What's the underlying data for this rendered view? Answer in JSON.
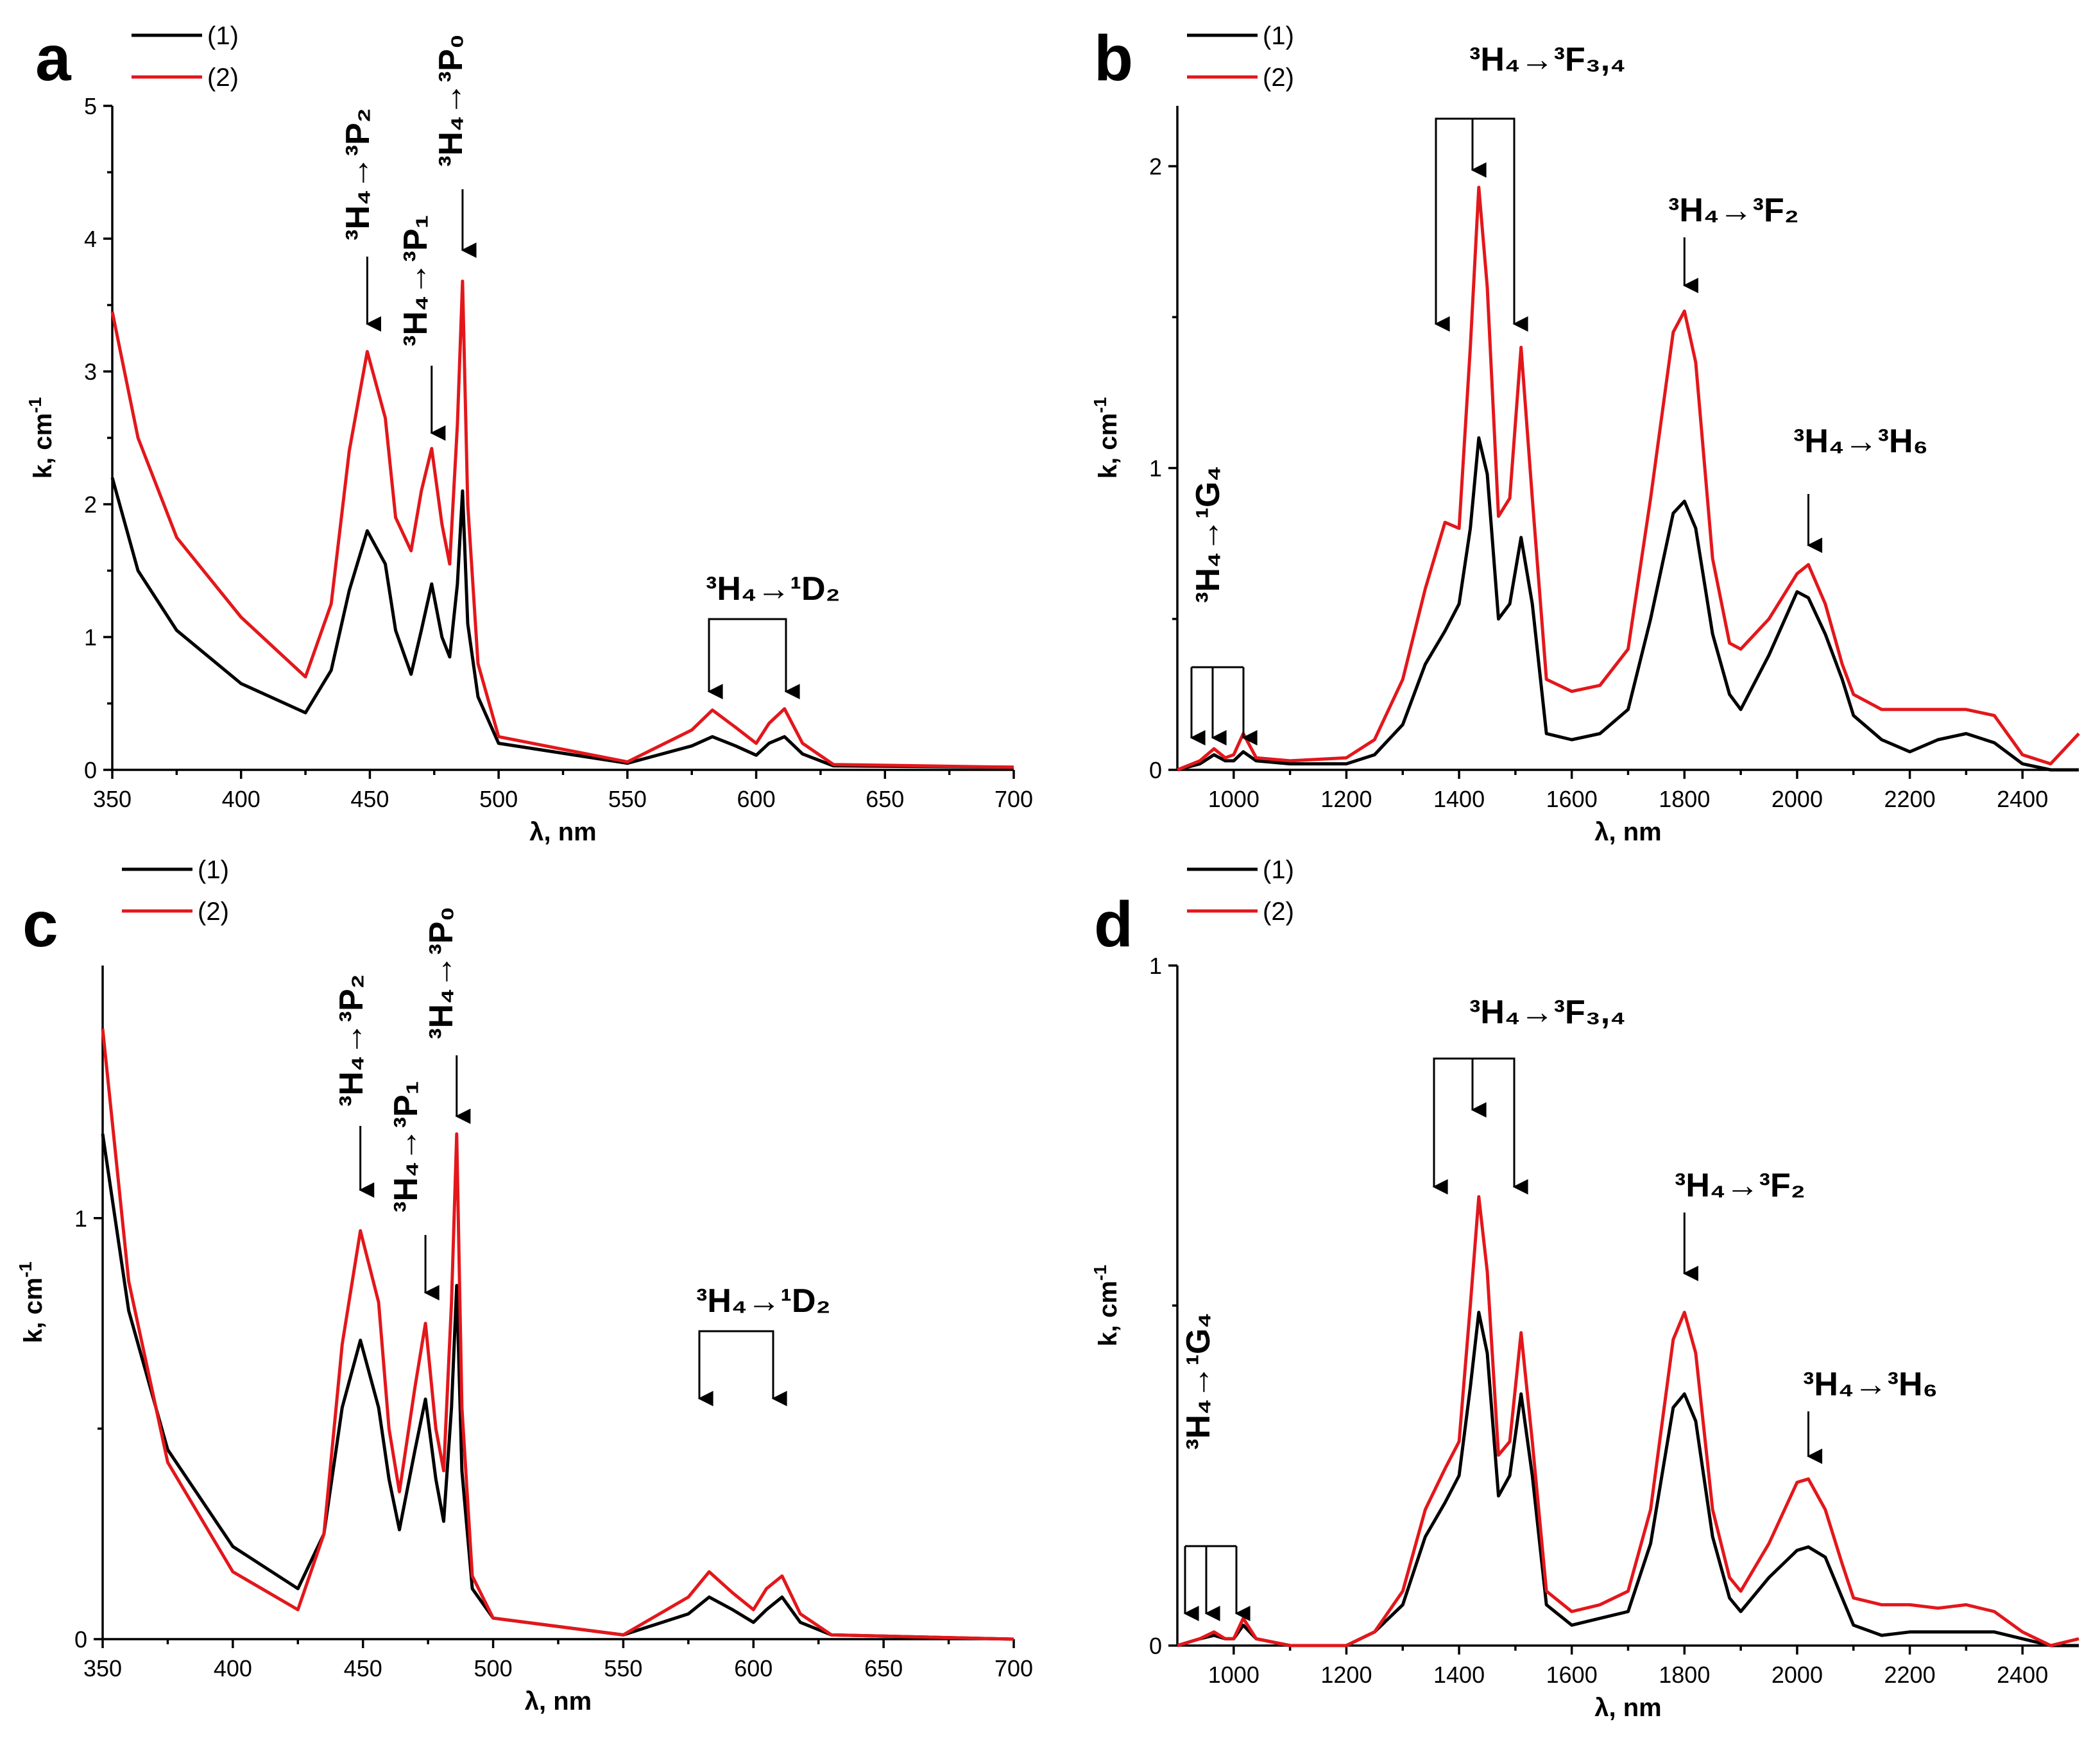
{
  "colors": {
    "series1": "#000000",
    "series2": "#e3171b"
  },
  "chart_data": [
    {
      "panel": "a",
      "type": "line",
      "xlabel": "λ, nm",
      "ylabel": "k, cm",
      "ylabel_sup": "-1",
      "xlim": [
        350,
        700
      ],
      "ylim": [
        0,
        5
      ],
      "xticks": [
        350,
        400,
        450,
        500,
        550,
        600,
        650,
        700
      ],
      "yticks": [
        0,
        1,
        2,
        3,
        4,
        5
      ],
      "legend": [
        "(1)",
        "(2)"
      ],
      "series": [
        {
          "name": "(1)",
          "x": [
            350,
            360,
            375,
            400,
            425,
            435,
            442,
            449,
            456,
            460,
            466,
            470,
            474,
            478,
            481,
            484,
            486,
            488,
            492,
            500,
            550,
            575,
            583,
            592,
            600,
            605,
            611,
            618,
            630,
            700
          ],
          "y": [
            2.2,
            1.5,
            1.05,
            0.65,
            0.43,
            0.75,
            1.35,
            1.8,
            1.55,
            1.05,
            0.72,
            1.05,
            1.4,
            1.0,
            0.85,
            1.4,
            2.1,
            1.1,
            0.55,
            0.2,
            0.05,
            0.18,
            0.25,
            0.18,
            0.11,
            0.2,
            0.25,
            0.12,
            0.03,
            0.02
          ]
        },
        {
          "name": "(2)",
          "x": [
            350,
            360,
            375,
            400,
            425,
            435,
            442,
            449,
            456,
            460,
            466,
            470,
            474,
            478,
            481,
            484,
            486,
            488,
            492,
            500,
            550,
            575,
            583,
            592,
            600,
            605,
            611,
            618,
            630,
            700
          ],
          "y": [
            3.45,
            2.5,
            1.75,
            1.15,
            0.7,
            1.25,
            2.4,
            3.15,
            2.65,
            1.9,
            1.65,
            2.1,
            2.42,
            1.85,
            1.55,
            2.6,
            3.68,
            2.0,
            0.8,
            0.25,
            0.06,
            0.3,
            0.45,
            0.32,
            0.2,
            0.35,
            0.46,
            0.2,
            0.04,
            0.02
          ]
        }
      ],
      "annotations": [
        {
          "text": "³H₄→³P₂",
          "rotated": true,
          "x": 449
        },
        {
          "text": "³H₄→³P₁",
          "rotated": true,
          "x": 474
        },
        {
          "text": "³H₄→³P₀",
          "rotated": true,
          "x": 486
        },
        {
          "text": "³H₄→¹D₂",
          "rotated": false,
          "x": 596
        }
      ]
    },
    {
      "panel": "b",
      "type": "line",
      "xlabel": "λ, nm",
      "ylabel": "k, cm",
      "ylabel_sup": "-1",
      "xlim": [
        900,
        2500
      ],
      "ylim": [
        0,
        2.2
      ],
      "xticks": [
        1000,
        1200,
        1400,
        1600,
        1800,
        2000,
        2200,
        2400
      ],
      "yticks": [
        0,
        1,
        2
      ],
      "legend": [
        "(1)",
        "(2)"
      ],
      "series": [
        {
          "name": "(1)",
          "x": [
            900,
            940,
            965,
            985,
            1000,
            1017,
            1040,
            1100,
            1200,
            1250,
            1300,
            1340,
            1375,
            1400,
            1420,
            1435,
            1450,
            1470,
            1490,
            1510,
            1530,
            1555,
            1600,
            1650,
            1700,
            1740,
            1780,
            1800,
            1820,
            1850,
            1880,
            1900,
            1950,
            2000,
            2020,
            2050,
            2080,
            2100,
            2150,
            2200,
            2250,
            2300,
            2350,
            2400,
            2450,
            2500
          ],
          "y": [
            0.0,
            0.02,
            0.05,
            0.03,
            0.03,
            0.06,
            0.03,
            0.02,
            0.02,
            0.05,
            0.15,
            0.35,
            0.46,
            0.55,
            0.8,
            1.1,
            0.98,
            0.5,
            0.55,
            0.77,
            0.55,
            0.12,
            0.1,
            0.12,
            0.2,
            0.5,
            0.85,
            0.89,
            0.8,
            0.45,
            0.25,
            0.2,
            0.38,
            0.59,
            0.57,
            0.45,
            0.3,
            0.18,
            0.1,
            0.06,
            0.1,
            0.12,
            0.09,
            0.02,
            0.0,
            0.0
          ]
        },
        {
          "name": "(2)",
          "x": [
            900,
            940,
            965,
            985,
            1000,
            1017,
            1040,
            1100,
            1200,
            1250,
            1300,
            1340,
            1375,
            1400,
            1420,
            1435,
            1450,
            1470,
            1490,
            1510,
            1530,
            1555,
            1600,
            1650,
            1700,
            1740,
            1780,
            1800,
            1820,
            1850,
            1880,
            1900,
            1950,
            2000,
            2020,
            2050,
            2080,
            2100,
            2150,
            2200,
            2250,
            2300,
            2350,
            2400,
            2450,
            2500
          ],
          "y": [
            0.0,
            0.03,
            0.07,
            0.04,
            0.05,
            0.12,
            0.04,
            0.03,
            0.04,
            0.1,
            0.3,
            0.6,
            0.82,
            0.8,
            1.4,
            1.93,
            1.6,
            0.84,
            0.9,
            1.4,
            0.9,
            0.3,
            0.26,
            0.28,
            0.4,
            0.9,
            1.45,
            1.52,
            1.35,
            0.7,
            0.42,
            0.4,
            0.5,
            0.65,
            0.68,
            0.55,
            0.35,
            0.25,
            0.2,
            0.2,
            0.2,
            0.2,
            0.18,
            0.05,
            0.02,
            0.12
          ]
        }
      ],
      "annotations": [
        {
          "text": "³H₄→¹G₄",
          "rotated": true,
          "x": 965
        },
        {
          "text": "³H₄→³F₃,₄",
          "rotated": false,
          "x": 1440
        },
        {
          "text": "³H₄→³F₂",
          "rotated": false,
          "x": 1800
        },
        {
          "text": "³H₄→³H₆",
          "rotated": false,
          "x": 2020
        }
      ]
    },
    {
      "panel": "c",
      "type": "line",
      "xlabel": "λ, nm",
      "ylabel": "k, cm",
      "ylabel_sup": "-1",
      "xlim": [
        350,
        700
      ],
      "ylim": [
        0,
        1.6
      ],
      "xticks": [
        350,
        400,
        450,
        500,
        550,
        600,
        650,
        700
      ],
      "yticks": [
        0,
        1
      ],
      "legend": [
        "(1)",
        "(2)"
      ],
      "series": [
        {
          "name": "(1)",
          "x": [
            350,
            360,
            375,
            400,
            425,
            435,
            442,
            449,
            456,
            460,
            464,
            470,
            474,
            478,
            481,
            484,
            486,
            488,
            492,
            500,
            550,
            575,
            583,
            592,
            600,
            605,
            611,
            618,
            630,
            700
          ],
          "y": [
            1.2,
            0.78,
            0.45,
            0.22,
            0.12,
            0.25,
            0.55,
            0.71,
            0.55,
            0.38,
            0.26,
            0.45,
            0.57,
            0.38,
            0.28,
            0.55,
            0.84,
            0.4,
            0.12,
            0.05,
            0.01,
            0.06,
            0.1,
            0.07,
            0.04,
            0.07,
            0.1,
            0.04,
            0.01,
            0.0
          ]
        },
        {
          "name": "(2)",
          "x": [
            350,
            360,
            375,
            400,
            425,
            435,
            442,
            449,
            456,
            460,
            464,
            470,
            474,
            478,
            481,
            484,
            486,
            488,
            492,
            500,
            550,
            575,
            583,
            592,
            600,
            605,
            611,
            618,
            630,
            700
          ],
          "y": [
            1.45,
            0.85,
            0.42,
            0.16,
            0.07,
            0.25,
            0.7,
            0.97,
            0.8,
            0.5,
            0.35,
            0.6,
            0.75,
            0.5,
            0.4,
            0.8,
            1.2,
            0.55,
            0.15,
            0.05,
            0.01,
            0.1,
            0.16,
            0.11,
            0.07,
            0.12,
            0.15,
            0.06,
            0.01,
            0.0
          ]
        }
      ],
      "annotations": [
        {
          "text": "³H₄→³P₂",
          "rotated": true,
          "x": 449
        },
        {
          "text": "³H₄→³P₁",
          "rotated": true,
          "x": 474
        },
        {
          "text": "³H₄→³P₀",
          "rotated": true,
          "x": 486
        },
        {
          "text": "³H₄→¹D₂",
          "rotated": false,
          "x": 596
        }
      ]
    },
    {
      "panel": "d",
      "type": "line",
      "xlabel": "λ, nm",
      "ylabel": "k, cm",
      "ylabel_sup": "-1",
      "xlim": [
        900,
        2500
      ],
      "ylim": [
        0,
        1.0
      ],
      "xticks": [
        1000,
        1200,
        1400,
        1600,
        1800,
        2000,
        2200,
        2400
      ],
      "yticks": [
        0,
        1
      ],
      "legend": [
        "(1)",
        "(2)"
      ],
      "series": [
        {
          "name": "(1)",
          "x": [
            900,
            940,
            965,
            985,
            1000,
            1017,
            1040,
            1100,
            1200,
            1250,
            1300,
            1340,
            1375,
            1400,
            1420,
            1435,
            1450,
            1470,
            1490,
            1510,
            1530,
            1555,
            1600,
            1650,
            1700,
            1740,
            1780,
            1800,
            1820,
            1850,
            1880,
            1900,
            1950,
            2000,
            2020,
            2050,
            2080,
            2100,
            2150,
            2200,
            2250,
            2300,
            2350,
            2400,
            2450,
            2500
          ],
          "y": [
            0.0,
            0.01,
            0.015,
            0.01,
            0.01,
            0.03,
            0.01,
            0.0,
            0.0,
            0.02,
            0.06,
            0.16,
            0.21,
            0.25,
            0.38,
            0.49,
            0.43,
            0.22,
            0.25,
            0.37,
            0.25,
            0.06,
            0.03,
            0.04,
            0.05,
            0.15,
            0.35,
            0.37,
            0.33,
            0.16,
            0.07,
            0.05,
            0.1,
            0.14,
            0.145,
            0.13,
            0.07,
            0.03,
            0.015,
            0.02,
            0.02,
            0.02,
            0.02,
            0.01,
            0.0,
            0.0
          ]
        },
        {
          "name": "(2)",
          "x": [
            900,
            940,
            965,
            985,
            1000,
            1017,
            1040,
            1100,
            1200,
            1250,
            1300,
            1340,
            1375,
            1400,
            1420,
            1435,
            1450,
            1470,
            1490,
            1510,
            1530,
            1555,
            1600,
            1650,
            1700,
            1740,
            1780,
            1800,
            1820,
            1850,
            1880,
            1900,
            1950,
            2000,
            2020,
            2050,
            2080,
            2100,
            2150,
            2200,
            2250,
            2300,
            2350,
            2400,
            2450,
            2500
          ],
          "y": [
            0.0,
            0.01,
            0.02,
            0.01,
            0.01,
            0.04,
            0.01,
            0.0,
            0.0,
            0.02,
            0.08,
            0.2,
            0.26,
            0.3,
            0.5,
            0.66,
            0.55,
            0.28,
            0.3,
            0.46,
            0.3,
            0.08,
            0.05,
            0.06,
            0.08,
            0.2,
            0.45,
            0.49,
            0.43,
            0.2,
            0.1,
            0.08,
            0.15,
            0.24,
            0.245,
            0.2,
            0.12,
            0.07,
            0.06,
            0.06,
            0.055,
            0.06,
            0.05,
            0.02,
            0.0,
            0.01
          ]
        }
      ],
      "annotations": [
        {
          "text": "³H₄→¹G₄",
          "rotated": true,
          "x": 965
        },
        {
          "text": "³H₄→³F₃,₄",
          "rotated": false,
          "x": 1440
        },
        {
          "text": "³H₄→³F₂",
          "rotated": false,
          "x": 1800
        },
        {
          "text": "³H₄→³H₆",
          "rotated": false,
          "x": 2020
        }
      ]
    }
  ]
}
